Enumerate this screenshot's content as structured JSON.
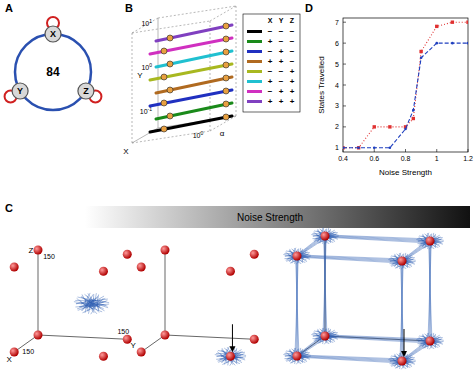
{
  "panel_labels": [
    "A",
    "B",
    "C",
    "D"
  ],
  "network": {
    "nodes": [
      {
        "label": "X"
      },
      {
        "label": "Y"
      },
      {
        "label": "Z"
      }
    ],
    "center_label": "84"
  },
  "panel_b": {
    "axis_labels": {
      "x": "X",
      "y": "Y",
      "alpha": "α"
    },
    "y_ticks": [
      {
        "base": "10",
        "exp": "1"
      },
      {
        "base": "10",
        "exp": "0"
      },
      {
        "base": "10",
        "exp": "-1"
      }
    ],
    "alpha_ticks": [
      {
        "base": "10",
        "exp": "0"
      }
    ],
    "legend": {
      "header": [
        "X",
        "Y",
        "Z"
      ],
      "rows": [
        {
          "color": "#000000",
          "signs": [
            "−",
            "−",
            "−"
          ]
        },
        {
          "color": "#1a8a1a",
          "signs": [
            "+",
            "−",
            "−"
          ]
        },
        {
          "color": "#2030c0",
          "signs": [
            "−",
            "+",
            "−"
          ]
        },
        {
          "color": "#b06a20",
          "signs": [
            "+",
            "+",
            "−"
          ]
        },
        {
          "color": "#a8b820",
          "signs": [
            "−",
            "−",
            "+"
          ]
        },
        {
          "color": "#20c0d0",
          "signs": [
            "+",
            "−",
            "+"
          ]
        },
        {
          "color": "#d030c0",
          "signs": [
            "−",
            "+",
            "+"
          ]
        },
        {
          "color": "#8040c0",
          "signs": [
            "+",
            "+",
            "+"
          ]
        }
      ]
    }
  },
  "panel_c": {
    "bar_label": "Noise Strength",
    "axis_labels": {
      "x": "X",
      "y": "Y",
      "z": "Z"
    },
    "axis_ends": {
      "x": "150",
      "y": "150",
      "z": "150"
    }
  },
  "chart_data": {
    "type": "line",
    "xlabel": "Noise Strength",
    "ylabel": "States Travelled",
    "x": [
      0.4,
      0.5,
      0.6,
      0.7,
      0.8,
      0.85,
      0.9,
      1.0,
      1.1,
      1.2
    ],
    "series": [
      {
        "color": "#e03030",
        "line_style": "dotted",
        "marker": "square",
        "values": [
          1,
          1,
          2,
          2,
          2,
          2.4,
          5.6,
          6.8,
          7,
          7
        ]
      },
      {
        "color": "#1f3fbf",
        "line_style": "dashed",
        "marker": "dot",
        "values": [
          1,
          1,
          1,
          1,
          1.9,
          2.8,
          5.3,
          6,
          6,
          6
        ]
      }
    ],
    "xlim": [
      0.4,
      1.2
    ],
    "ylim": [
      0.8,
      7.2
    ],
    "xticks": [
      0.4,
      0.6,
      0.8,
      1,
      1.2
    ],
    "yticks": [
      1,
      2,
      3,
      4,
      5,
      6,
      7
    ]
  }
}
